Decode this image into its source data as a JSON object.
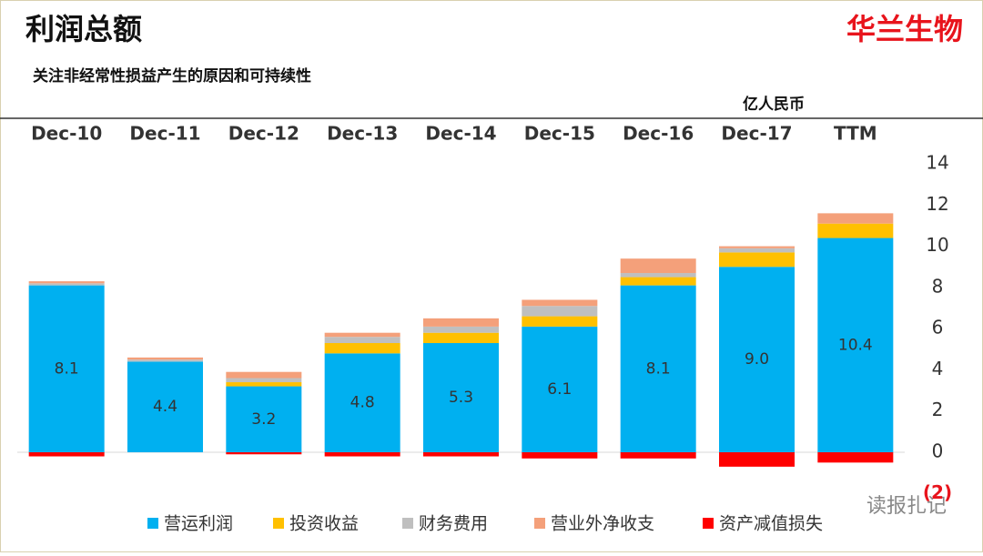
{
  "chart_data": {
    "type": "stacked_bar",
    "title": "利润总额",
    "brand": "华兰生物",
    "subtitle": "关注非经常性损益产生的原因和可持续性",
    "unit_label": "亿人民币",
    "watermark": "读报扎记",
    "categories": [
      "Dec-10",
      "Dec-11",
      "Dec-12",
      "Dec-13",
      "Dec-14",
      "Dec-15",
      "Dec-16",
      "Dec-17",
      "TTM"
    ],
    "series": [
      {
        "name": "营运利润",
        "color": "#00b0f0",
        "values": [
          8.1,
          4.4,
          3.2,
          4.8,
          5.3,
          6.1,
          8.1,
          9.0,
          10.4
        ],
        "value_labels": [
          "8.1",
          "4.4",
          "3.2",
          "4.8",
          "5.3",
          "6.1",
          "8.1",
          "9.0",
          "10.4"
        ]
      },
      {
        "name": "投资收益",
        "color": "#ffc000",
        "values": [
          0,
          0,
          0.2,
          0.5,
          0.5,
          0.5,
          0.4,
          0.7,
          0.7
        ]
      },
      {
        "name": "财务费用",
        "color": "#bfbfbf",
        "values": [
          0.1,
          0.1,
          0.2,
          0.3,
          0.3,
          0.5,
          0.2,
          0.2,
          0
        ]
      },
      {
        "name": "营业外净收支",
        "color": "#f4a07a",
        "values": [
          0.1,
          0.1,
          0.3,
          0.2,
          0.4,
          0.3,
          0.7,
          0.1,
          0.5
        ]
      },
      {
        "name": "资产减值损失",
        "color": "#ff0000",
        "values": [
          -0.2,
          0,
          -0.1,
          -0.2,
          -0.2,
          -0.3,
          -0.3,
          -0.7,
          -0.5
        ]
      }
    ],
    "ylim": [
      -2.4,
      14.8
    ],
    "yticks": [
      {
        "value": -2,
        "label": "(2)"
      },
      0,
      2,
      4,
      6,
      8,
      10,
      12,
      14
    ]
  }
}
